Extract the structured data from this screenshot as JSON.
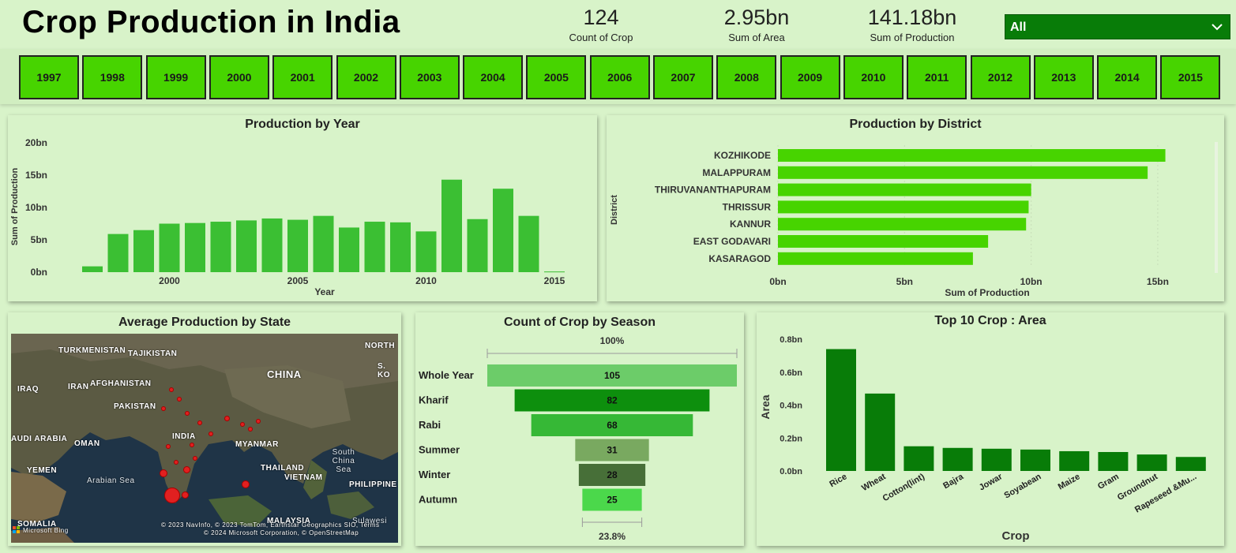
{
  "header": {
    "title": "Crop Production in India",
    "kpis": [
      {
        "value": "124",
        "label": "Count of Crop"
      },
      {
        "value": "2.95bn",
        "label": "Sum of Area"
      },
      {
        "value": "141.18bn",
        "label": "Sum of Production"
      }
    ],
    "filter": {
      "selected": "All",
      "icon": "chevron-down-icon"
    }
  },
  "years": [
    "1997",
    "1998",
    "1999",
    "2000",
    "2001",
    "2002",
    "2003",
    "2004",
    "2005",
    "2006",
    "2007",
    "2008",
    "2009",
    "2010",
    "2011",
    "2012",
    "2013",
    "2014",
    "2015"
  ],
  "colors": {
    "background": "#d8f3c9",
    "bar": "#3bbf33",
    "bright_bar": "#47d400",
    "dark_green": "#087c08"
  },
  "chart_data": [
    {
      "id": "production_by_year",
      "type": "bar",
      "title": "Production by Year",
      "xlabel": "Year",
      "ylabel": "Sum of Production",
      "x": [
        1997,
        1998,
        1999,
        2000,
        2001,
        2002,
        2003,
        2004,
        2005,
        2006,
        2007,
        2008,
        2009,
        2010,
        2011,
        2012,
        2013,
        2014,
        2015
      ],
      "values": [
        0.9,
        5.9,
        6.5,
        7.5,
        7.6,
        7.8,
        8.0,
        8.3,
        8.1,
        8.7,
        6.9,
        7.8,
        7.7,
        6.3,
        14.3,
        8.2,
        12.9,
        8.7,
        0.1
      ],
      "x_ticks": [
        "2000",
        "2005",
        "2010",
        "2015"
      ],
      "y_ticks": [
        "0bn",
        "5bn",
        "10bn",
        "15bn",
        "20bn"
      ],
      "ylim": [
        0,
        20
      ],
      "unit": "bn"
    },
    {
      "id": "production_by_district",
      "type": "bar",
      "orientation": "horizontal",
      "title": "Production by District",
      "xlabel": "Sum of Production",
      "ylabel": "District",
      "categories": [
        "KOZHIKODE",
        "MALAPPURAM",
        "THIRUVANANTHAPURAM",
        "THRISSUR",
        "KANNUR",
        "EAST GODAVARI",
        "KASARAGOD"
      ],
      "values": [
        15.3,
        14.6,
        10.0,
        9.9,
        9.8,
        8.3,
        7.7
      ],
      "x_ticks": [
        "0bn",
        "5bn",
        "10bn",
        "15bn"
      ],
      "xlim": [
        0,
        16
      ],
      "unit": "bn"
    },
    {
      "id": "count_by_season",
      "type": "funnel",
      "title": "Count of Crop by Season",
      "categories": [
        "Whole Year",
        "Kharif",
        "Rabi",
        "Summer",
        "Winter",
        "Autumn"
      ],
      "values": [
        105,
        82,
        68,
        31,
        28,
        25
      ],
      "colors": [
        "#6ccc69",
        "#0d8f0d",
        "#36b836",
        "#79a960",
        "#476f38",
        "#4bd84b"
      ],
      "top_percent": "100%",
      "bottom_percent": "23.8%"
    },
    {
      "id": "top10_crop_area",
      "type": "bar",
      "title": "Top 10 Crop : Area",
      "xlabel": "Crop",
      "ylabel": "Area",
      "categories": [
        "Rice",
        "Wheat",
        "Cotton(lint)",
        "Bajra",
        "Jowar",
        "Soyabean",
        "Maize",
        "Gram",
        "Groundnut",
        "Rapeseed &Mu..."
      ],
      "values": [
        0.74,
        0.47,
        0.15,
        0.14,
        0.135,
        0.13,
        0.12,
        0.115,
        0.1,
        0.085
      ],
      "y_ticks": [
        "0.0bn",
        "0.2bn",
        "0.4bn",
        "0.6bn",
        "0.8bn"
      ],
      "ylim": [
        0,
        0.8
      ],
      "unit": "bn"
    }
  ],
  "map": {
    "title": "Average Production by State",
    "labels": [
      "NORTH",
      "TURKMENISTAN",
      "TAJIKISTAN",
      "IRAQ",
      "IRAN",
      "AFGHANISTAN",
      "PAKISTAN",
      "CHINA",
      "S. KO",
      "INDIA",
      "AUDI ARABIA",
      "OMAN",
      "MYANMAR",
      "South China Sea",
      "THAILAND",
      "VIETNAM",
      "YEMEN",
      "Arabian Sea",
      "PHILIPPINE",
      "SOMALIA",
      "MALAYSIA",
      "Sulawesi"
    ],
    "attribution_1": "© 2023 NavInfo, © 2023 TomTom, Earthstar Geographics SIO, Terms",
    "attribution_2": "© 2024 Microsoft Corporation, © OpenStreetMap",
    "brand": "Microsoft Bing"
  }
}
